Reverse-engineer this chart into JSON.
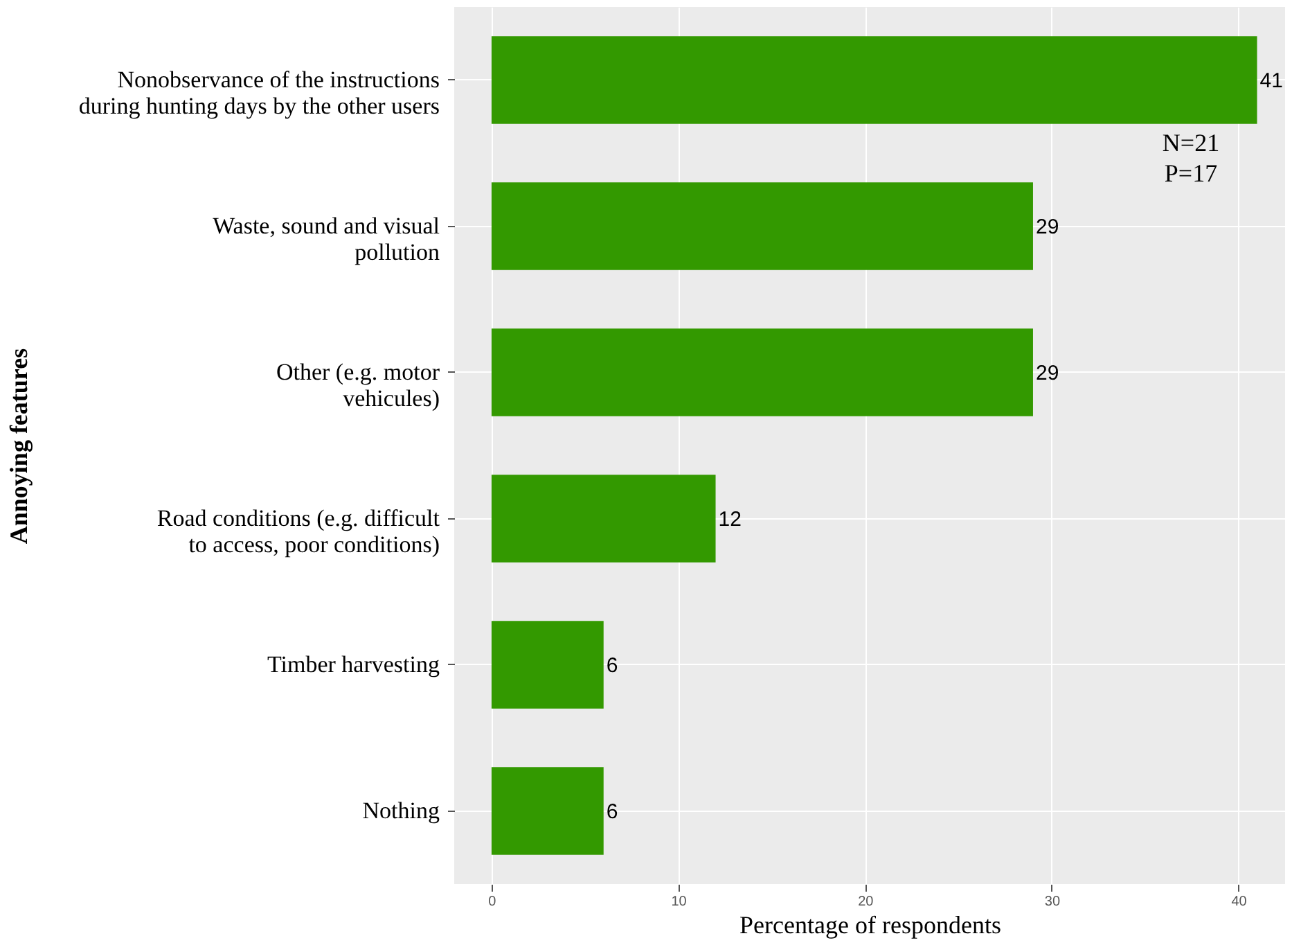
{
  "chart_data": {
    "type": "bar",
    "orientation": "horizontal",
    "categories": [
      "Nonobservance of the instructions\nduring hunting days by the other users",
      "Waste, sound and visual\npollution",
      "Other (e.g. motor\nvehicules)",
      "Road conditions (e.g. difficult\nto access, poor conditions)",
      "Timber harvesting",
      "Nothing"
    ],
    "values": [
      41,
      29,
      29,
      12,
      6,
      6
    ],
    "color": "#339900",
    "xlabel": "Percentage of respondents",
    "ylabel": "Annoying features",
    "xlim": [
      -2,
      42.5
    ],
    "xticks": [
      0,
      10,
      20,
      30,
      40
    ],
    "grid": true,
    "data_labels": true,
    "annotations": [
      "N=21\nP=17"
    ]
  }
}
